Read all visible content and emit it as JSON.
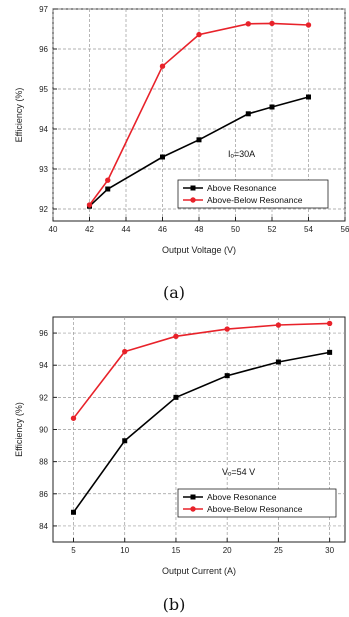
{
  "chart_data": [
    {
      "type": "line",
      "panel_label": "(a)",
      "xlabel": "Output Voltage (V)",
      "ylabel": "Efficiency (%)",
      "xlim": [
        40,
        56
      ],
      "ylim": [
        91.7,
        97
      ],
      "xticks": [
        40,
        42,
        44,
        46,
        48,
        50,
        52,
        54,
        56
      ],
      "yticks": [
        92,
        93,
        94,
        95,
        96,
        97
      ],
      "grid": true,
      "legend_position": "bottom-right",
      "annotation": "Iₒ=30A",
      "series": [
        {
          "name": "Above Resonance",
          "color": "#000000",
          "marker": "square",
          "x": [
            42,
            43,
            46,
            48,
            50.7,
            52,
            54
          ],
          "y": [
            92.07,
            92.5,
            93.3,
            93.73,
            94.38,
            94.55,
            94.8
          ]
        },
        {
          "name": "Above-Below Resonance",
          "color": "#e8222a",
          "marker": "circle",
          "x": [
            42,
            43,
            46,
            48,
            50.7,
            52,
            54
          ],
          "y": [
            92.1,
            92.72,
            95.57,
            96.36,
            96.63,
            96.64,
            96.6
          ]
        }
      ]
    },
    {
      "type": "line",
      "panel_label": "(b)",
      "xlabel": "Output Current (A)",
      "ylabel": "Efficiency (%)",
      "xlim": [
        3,
        31.5
      ],
      "ylim": [
        83,
        97
      ],
      "xticks": [
        5,
        10,
        15,
        20,
        25,
        30
      ],
      "yticks": [
        84,
        86,
        88,
        90,
        92,
        94,
        96
      ],
      "grid": true,
      "legend_position": "bottom-right",
      "annotation": "Vₒ=54 V",
      "series": [
        {
          "name": "Above Resonance",
          "color": "#000000",
          "marker": "square",
          "x": [
            5,
            10,
            15,
            20,
            25,
            30
          ],
          "y": [
            84.85,
            89.3,
            92.0,
            93.35,
            94.2,
            94.8
          ]
        },
        {
          "name": "Above-Below Resonance",
          "color": "#e8222a",
          "marker": "circle",
          "x": [
            5,
            10,
            15,
            20,
            25,
            30
          ],
          "y": [
            90.7,
            94.85,
            95.8,
            96.25,
            96.5,
            96.6
          ]
        }
      ]
    }
  ]
}
